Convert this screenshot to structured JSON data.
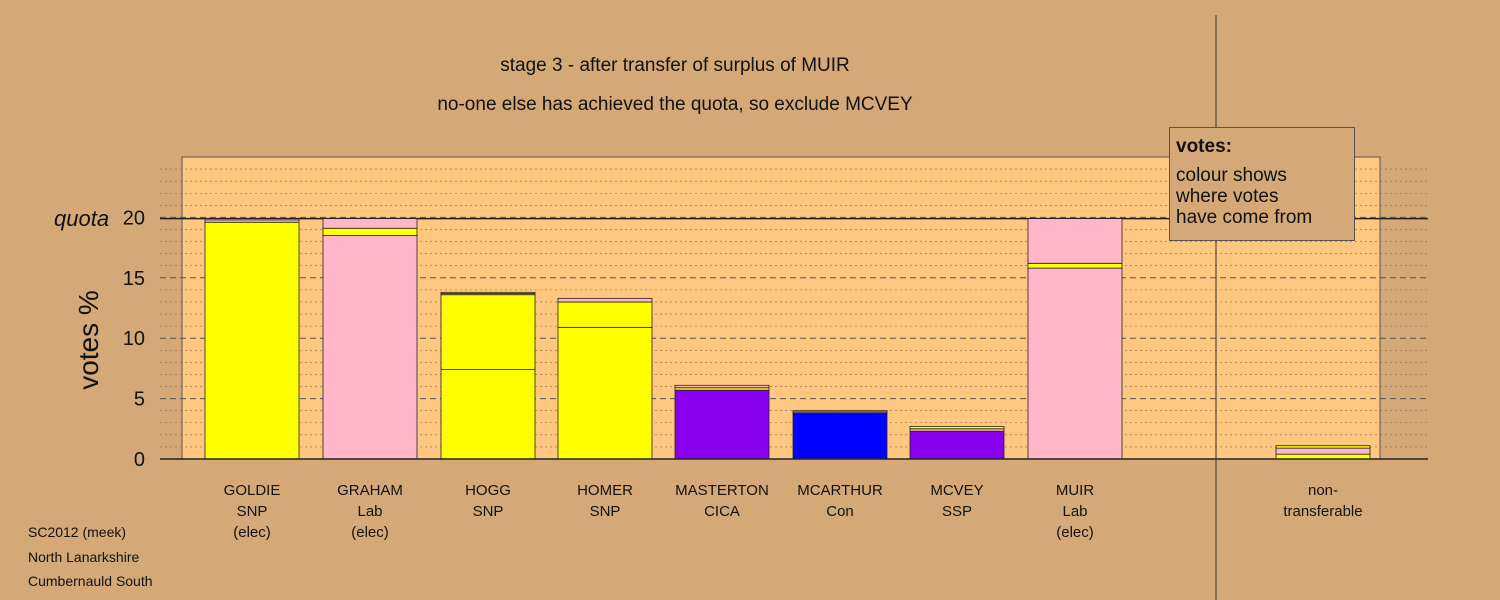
{
  "title_line1": "stage 3 - after transfer of surplus of MUIR",
  "title_line2": "no-one else has achieved the quota, so exclude MCVEY",
  "legend": {
    "title": "votes:",
    "lines": [
      "colour shows",
      "where votes",
      "have come from"
    ]
  },
  "footer": [
    "SC2012 (meek)",
    "North Lanarkshire",
    "Cumbernauld South"
  ],
  "colors": {
    "SNP": "#ffff00",
    "Lab": "#ffb6c8",
    "CICA": "#8800ee",
    "Con": "#0000ff",
    "SSP": "#8800ee",
    "panel": "#ffc77f",
    "background": "#d4a977"
  },
  "chart_data": {
    "type": "bar",
    "ylabel": "votes %",
    "quota_label": "quota",
    "quota": 19.9,
    "ylim": [
      0,
      25
    ],
    "yticks": [
      "0",
      "5",
      "10",
      "15",
      "20"
    ],
    "grid": true,
    "categories": [
      {
        "lines": [
          "GOLDIE",
          "SNP",
          "(elec)"
        ],
        "segments": [
          [
            19.6,
            "SNP"
          ],
          [
            0.2,
            "Lab"
          ],
          [
            0.1,
            "SNP"
          ]
        ]
      },
      {
        "lines": [
          "GRAHAM",
          "Lab",
          "(elec)"
        ],
        "segments": [
          [
            18.5,
            "Lab"
          ],
          [
            0.6,
            "SNP"
          ],
          [
            0.8,
            "Lab"
          ]
        ]
      },
      {
        "lines": [
          "HOGG",
          "SNP"
        ],
        "segments": [
          [
            7.4,
            "SNP"
          ],
          [
            6.2,
            "SNP"
          ],
          [
            0.1,
            "Lab"
          ],
          [
            0.1,
            "SNP"
          ]
        ]
      },
      {
        "lines": [
          "HOMER",
          "SNP"
        ],
        "segments": [
          [
            10.9,
            "SNP"
          ],
          [
            2.1,
            "SNP"
          ],
          [
            0.3,
            "Lab"
          ]
        ]
      },
      {
        "lines": [
          "MASTERTON",
          "CICA"
        ],
        "segments": [
          [
            5.7,
            "CICA"
          ],
          [
            0.2,
            "SNP"
          ],
          [
            0.2,
            "Lab"
          ]
        ]
      },
      {
        "lines": [
          "MCARTHUR",
          "Con"
        ],
        "segments": [
          [
            3.8,
            "Con"
          ],
          [
            0.1,
            "Lab"
          ],
          [
            0.1,
            "SNP"
          ]
        ]
      },
      {
        "lines": [
          "MCVEY",
          "SSP"
        ],
        "segments": [
          [
            2.3,
            "SSP"
          ],
          [
            0.2,
            "Lab"
          ],
          [
            0.2,
            "SNP"
          ]
        ]
      },
      {
        "lines": [
          "MUIR",
          "Lab",
          "(elec)"
        ],
        "segments": [
          [
            15.8,
            "Lab"
          ],
          [
            0.4,
            "SNP"
          ],
          [
            3.7,
            "Lab"
          ]
        ]
      }
    ],
    "nontransferable": {
      "lines": [
        "non-",
        "transferable"
      ],
      "segments": [
        [
          0.4,
          "SNP"
        ],
        [
          0.5,
          "Lab"
        ],
        [
          0.2,
          "SNP"
        ]
      ]
    }
  }
}
